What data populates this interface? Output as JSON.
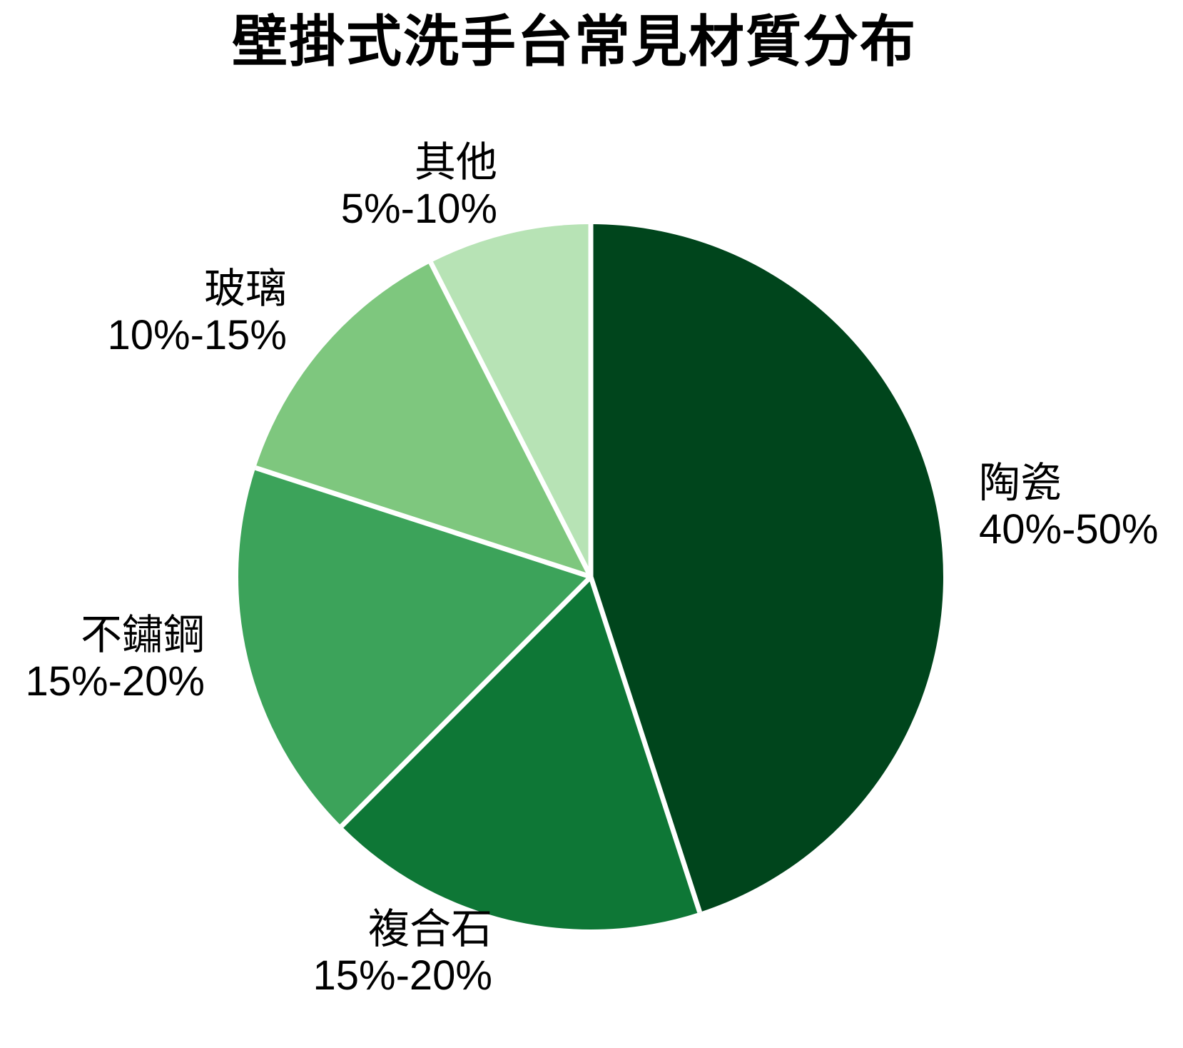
{
  "chart_data": {
    "type": "pie",
    "title": "壁掛式洗手台常見材質分布",
    "direction": "clockwise",
    "start_angle": "12-o-clock",
    "separator_color": "#ffffff",
    "background_color": "#ffffff",
    "text_color": "#000000",
    "slices": [
      {
        "id": "ceramic",
        "label": "陶瓷",
        "range": "40%-50%",
        "value": 45,
        "color": "#00451c"
      },
      {
        "id": "composite-stone",
        "label": "複合石",
        "range": "15%-20%",
        "value": 17.5,
        "color": "#0e7736"
      },
      {
        "id": "stainless-steel",
        "label": "不鏽鋼",
        "range": "15%-20%",
        "value": 17.5,
        "color": "#3ca35a"
      },
      {
        "id": "glass",
        "label": "玻璃",
        "range": "10%-15%",
        "value": 12.5,
        "color": "#7ec77e"
      },
      {
        "id": "other",
        "label": "其他",
        "range": "5%-10%",
        "value": 7.5,
        "color": "#b7e3b5"
      }
    ]
  }
}
